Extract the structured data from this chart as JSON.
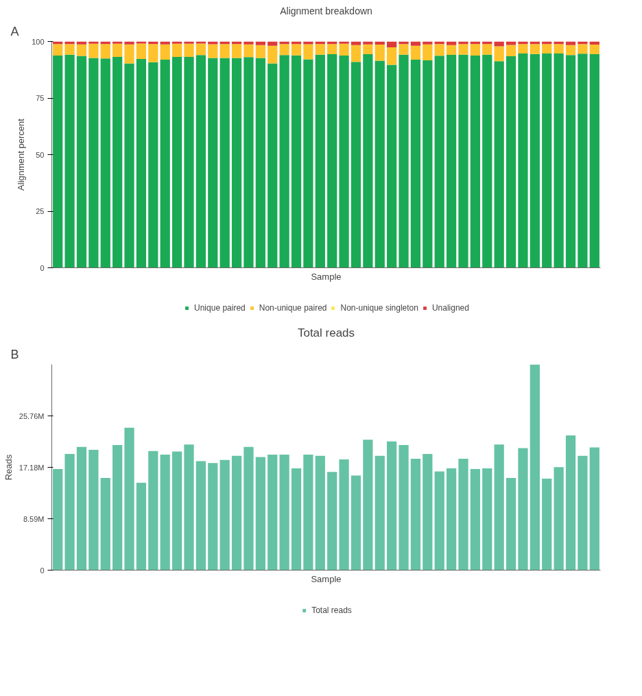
{
  "chart_data": [
    {
      "type": "bar",
      "title": "Alignment breakdown",
      "xlabel": "Sample",
      "ylabel": "Alignment percent",
      "annotations": [
        "A"
      ],
      "stacked": true,
      "legend": "bottom",
      "tick_labels": "y",
      "grid": false,
      "categories": [
        null,
        null,
        null,
        null,
        null,
        null,
        null,
        null,
        null,
        null,
        null,
        null,
        null,
        null,
        null,
        null,
        null,
        null,
        null,
        null,
        null,
        null,
        null,
        null,
        null,
        null,
        null,
        null,
        null,
        null,
        null,
        null,
        null,
        null,
        null,
        null,
        null,
        null,
        null,
        null,
        null,
        null,
        null,
        null,
        null,
        null
      ],
      "ylim": [
        0,
        100
      ],
      "yticks": [
        0,
        25,
        50,
        75,
        100
      ],
      "series": [
        {
          "name": "Unique paired",
          "color": "#1aaa55",
          "values": [
            93.8,
            94.2,
            93.6,
            92.7,
            92.5,
            93.2,
            90.3,
            92.3,
            90.8,
            92.0,
            93.2,
            93.2,
            94.0,
            92.7,
            92.7,
            92.7,
            93.1,
            92.7,
            90.3,
            94.0,
            93.9,
            92.1,
            94.2,
            94.4,
            93.8,
            91.0,
            94.4,
            91.5,
            89.7,
            94.2,
            92.0,
            91.7,
            93.7,
            94.1,
            94.2,
            93.8,
            94.2,
            91.3,
            93.5,
            94.7,
            94.5,
            94.7,
            94.7,
            94.0,
            94.6,
            94.4
          ]
        },
        {
          "name": "Non-unique paired",
          "color": "#fec32c",
          "values": [
            5.1,
            4.7,
            5.1,
            6.3,
            6.4,
            5.8,
            8.4,
            6.8,
            8.1,
            6.7,
            5.8,
            5.8,
            5.1,
            6.1,
            6.2,
            6.2,
            5.6,
            5.7,
            7.8,
            4.9,
            5.0,
            6.7,
            4.7,
            4.5,
            5.2,
            7.4,
            4.3,
            7.1,
            7.7,
            4.7,
            6.1,
            7.0,
            5.2,
            4.3,
            4.7,
            5.1,
            4.7,
            6.6,
            5.0,
            4.2,
            4.4,
            4.2,
            4.2,
            4.4,
            4.3,
            4.2
          ]
        },
        {
          "name": "Non-unique singleton",
          "color": "#fde74c",
          "values": [
            0,
            0,
            0,
            0,
            0,
            0,
            0,
            0,
            0,
            0,
            0,
            0,
            0,
            0,
            0,
            0,
            0,
            0,
            0,
            0,
            0,
            0,
            0,
            0,
            0,
            0,
            0,
            0,
            0,
            0,
            0,
            0,
            0,
            0,
            0,
            0,
            0,
            0,
            0,
            0,
            0,
            0,
            0,
            0,
            0,
            0
          ]
        },
        {
          "name": "Unaligned",
          "color": "#dc3a3a",
          "values": [
            1.1,
            1.1,
            1.3,
            1.0,
            1.1,
            1.0,
            1.3,
            0.9,
            1.1,
            1.3,
            1.0,
            1.0,
            0.9,
            1.2,
            1.1,
            1.1,
            1.3,
            1.6,
            1.9,
            1.1,
            1.1,
            1.2,
            1.1,
            1.1,
            1.0,
            1.6,
            1.3,
            1.4,
            2.6,
            1.1,
            1.9,
            1.3,
            1.1,
            1.6,
            1.1,
            1.1,
            1.1,
            2.1,
            1.5,
            1.1,
            1.1,
            1.1,
            1.1,
            1.6,
            1.1,
            1.4
          ]
        }
      ]
    },
    {
      "type": "bar",
      "title": "Total reads",
      "xlabel": "Sample",
      "ylabel": "Reads",
      "annotations": [
        "B"
      ],
      "legend": "bottom",
      "tick_labels": "y",
      "grid": false,
      "categories": [
        null,
        null,
        null,
        null,
        null,
        null,
        null,
        null,
        null,
        null,
        null,
        null,
        null,
        null,
        null,
        null,
        null,
        null,
        null,
        null,
        null,
        null,
        null,
        null,
        null,
        null,
        null,
        null,
        null,
        null,
        null,
        null,
        null,
        null,
        null,
        null,
        null,
        null,
        null,
        null,
        null,
        null,
        null,
        null,
        null,
        null
      ],
      "ylim": [
        0,
        34.36
      ],
      "yticks": [
        {
          "value": 0,
          "label": "0"
        },
        {
          "value": 8.59,
          "label": "8.59M"
        },
        {
          "value": 17.18,
          "label": "17.18M"
        },
        {
          "value": 25.76,
          "label": "25.76M"
        }
      ],
      "series": [
        {
          "name": "Total reads",
          "color": "#66c2a5",
          "values": [
            16.9,
            19.4,
            20.6,
            20.1,
            15.4,
            20.9,
            23.8,
            14.6,
            19.9,
            19.3,
            19.8,
            21.0,
            18.2,
            17.9,
            18.4,
            19.1,
            20.6,
            18.9,
            19.3,
            19.3,
            17.0,
            19.3,
            19.1,
            16.4,
            18.5,
            15.8,
            21.8,
            19.1,
            21.5,
            20.9,
            18.6,
            19.4,
            16.5,
            17.0,
            18.6,
            16.9,
            17.0,
            21.0,
            15.4,
            20.4,
            34.36,
            15.3,
            17.2,
            22.5,
            19.1,
            20.5
          ]
        }
      ]
    }
  ]
}
